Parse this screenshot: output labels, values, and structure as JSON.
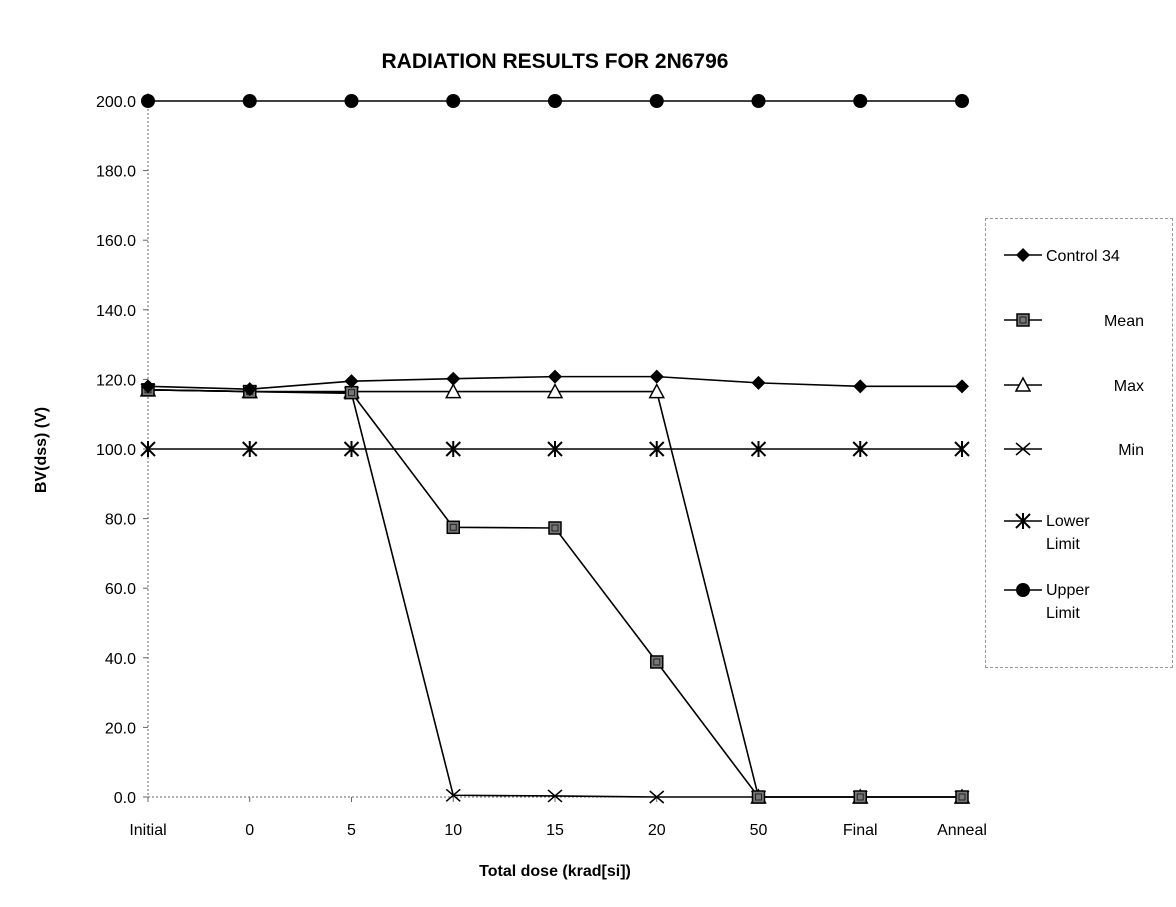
{
  "chart_data": {
    "type": "line",
    "title": "RADIATION RESULTS FOR 2N6796",
    "xlabel": "Total dose (krad[si])",
    "ylabel": "BV(dss) (V)",
    "categories": [
      "Initial",
      "0",
      "5",
      "10",
      "15",
      "20",
      "50",
      "Final",
      "Anneal"
    ],
    "ylim": [
      0,
      200
    ],
    "yticks": [
      "0.0",
      "20.0",
      "40.0",
      "60.0",
      "80.0",
      "100.0",
      "120.0",
      "140.0",
      "160.0",
      "180.0",
      "200.0"
    ],
    "grid": false,
    "legend_position": "right",
    "series": [
      {
        "name": "Control 34",
        "marker": "diamond",
        "values": [
          118.0,
          117.2,
          119.5,
          120.2,
          120.8,
          120.8,
          119.0,
          118.0,
          118.0
        ]
      },
      {
        "name": "Mean",
        "marker": "square",
        "values": [
          117.0,
          116.5,
          116.2,
          77.5,
          77.3,
          38.8,
          0.0,
          0.0,
          0.0
        ]
      },
      {
        "name": "Max",
        "marker": "triangle",
        "values": [
          117.0,
          116.5,
          116.5,
          116.5,
          116.5,
          116.5,
          0.0,
          0.0,
          0.0
        ]
      },
      {
        "name": "Min",
        "marker": "x",
        "values": [
          117.0,
          116.5,
          116.0,
          0.5,
          0.3,
          0.0,
          0.0,
          0.0,
          0.0
        ]
      },
      {
        "name": "Lower Limit",
        "marker": "star",
        "values": [
          100,
          100,
          100,
          100,
          100,
          100,
          100,
          100,
          100
        ]
      },
      {
        "name": "Upper Limit",
        "marker": "circle",
        "values": [
          200,
          200,
          200,
          200,
          200,
          200,
          200,
          200,
          200
        ]
      }
    ]
  }
}
